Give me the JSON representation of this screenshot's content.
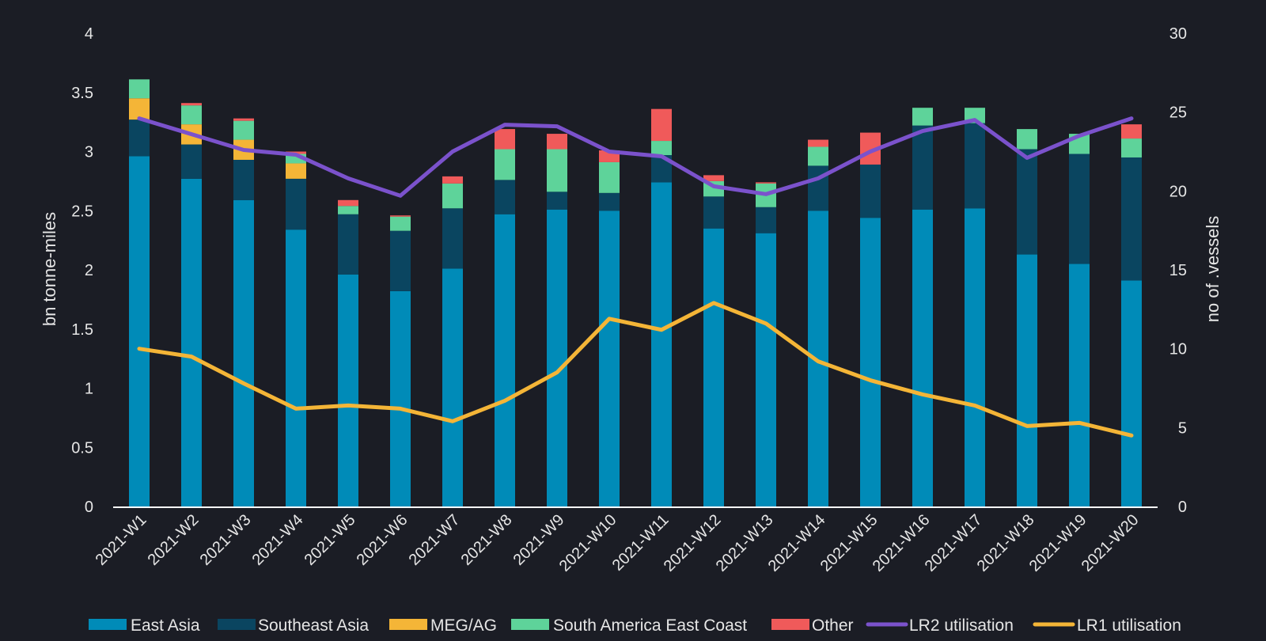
{
  "chart_data": {
    "type": "bar",
    "stacked": true,
    "categories": [
      "2021-W1",
      "2021-W2",
      "2021-W3",
      "2021-W4",
      "2021-W5",
      "2021-W6",
      "2021-W7",
      "2021-W8",
      "2021-W9",
      "2021-W10",
      "2021-W11",
      "2021-W12",
      "2021-W13",
      "2021-W14",
      "2021-W15",
      "2021-W16",
      "2021-W17",
      "2021-W18",
      "2021-W19",
      "2021-W20"
    ],
    "series": [
      {
        "name": "East Asia",
        "type": "bar",
        "axis": "left",
        "color": "#008bb8",
        "values": [
          2.96,
          2.77,
          2.59,
          2.34,
          1.96,
          1.82,
          2.01,
          2.47,
          2.51,
          2.5,
          2.74,
          2.35,
          2.31,
          2.5,
          2.44,
          2.51,
          2.52,
          2.13,
          2.05,
          1.91
        ]
      },
      {
        "name": "Southeast Asia",
        "type": "bar",
        "axis": "left",
        "color": "#0a4560",
        "values": [
          0.31,
          0.29,
          0.34,
          0.43,
          0.51,
          0.51,
          0.51,
          0.29,
          0.15,
          0.15,
          0.23,
          0.27,
          0.22,
          0.38,
          0.45,
          0.71,
          0.72,
          0.89,
          0.93,
          1.04
        ]
      },
      {
        "name": "MEG/AG",
        "type": "bar",
        "axis": "left",
        "color": "#f4b537",
        "values": [
          0.18,
          0.17,
          0.17,
          0.13,
          0,
          0,
          0,
          0,
          0,
          0,
          0,
          0,
          0,
          0,
          0,
          0,
          0,
          0,
          0,
          0
        ]
      },
      {
        "name": "South America East Coast",
        "type": "bar",
        "axis": "left",
        "color": "#5ed39a",
        "values": [
          0.16,
          0.16,
          0.16,
          0.08,
          0.07,
          0.12,
          0.21,
          0.26,
          0.36,
          0.26,
          0.12,
          0.13,
          0.2,
          0.16,
          0.0,
          0.15,
          0.13,
          0.17,
          0.17,
          0.16
        ]
      },
      {
        "name": "Other",
        "type": "bar",
        "axis": "left",
        "color": "#f05a5a",
        "values": [
          0,
          0.02,
          0.02,
          0.02,
          0.05,
          0.01,
          0.06,
          0.17,
          0.13,
          0.1,
          0.27,
          0.05,
          0.01,
          0.06,
          0.27,
          0,
          0,
          0,
          0,
          0.12
        ]
      },
      {
        "name": "LR2 utilisation",
        "type": "line",
        "axis": "right",
        "color": "#7b52cc",
        "values": [
          24.6,
          23.6,
          22.6,
          22.3,
          20.8,
          19.7,
          22.5,
          24.2,
          24.1,
          22.5,
          22.2,
          20.3,
          19.8,
          20.8,
          22.5,
          23.8,
          24.5,
          22.1,
          23.5,
          24.6
        ]
      },
      {
        "name": "LR1 utilisation",
        "type": "line",
        "axis": "right",
        "color": "#f4b537",
        "values": [
          10.0,
          9.5,
          7.8,
          6.2,
          6.4,
          6.2,
          5.4,
          6.7,
          8.5,
          11.9,
          11.2,
          12.9,
          11.6,
          9.2,
          8.0,
          7.1,
          6.4,
          5.1,
          5.3,
          4.5
        ]
      }
    ],
    "ylabel": "bn tonne-miles",
    "y2label": "no of .vessels",
    "ylim": [
      0,
      4
    ],
    "yticks": [
      "0",
      "0.5",
      "1",
      "1.5",
      "2",
      "2.5",
      "3",
      "3.5",
      "4"
    ],
    "y2lim": [
      0,
      30
    ],
    "y2ticks": [
      "0",
      "5",
      "10",
      "15",
      "20",
      "25",
      "30"
    ],
    "grid": false,
    "legend_position": "bottom"
  }
}
